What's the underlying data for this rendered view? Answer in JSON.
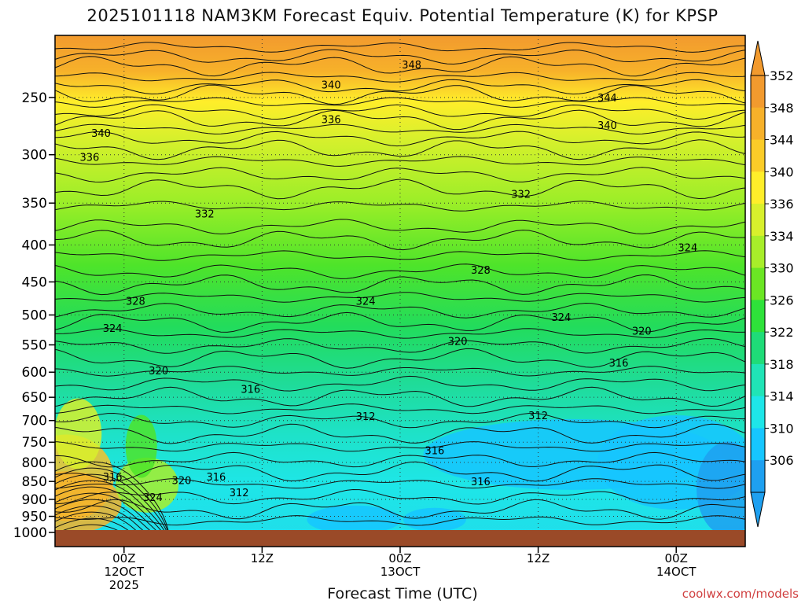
{
  "chart_data": {
    "type": "heatmap",
    "title": "2025101118 NAM3KM Forecast Equiv. Potential Temperature (K) for KPSP",
    "xlabel": "Forecast Time (UTC)",
    "ylabel": "",
    "credit": "coolwx.com/models",
    "y_pressure_levels": [
      250,
      300,
      350,
      400,
      450,
      500,
      550,
      600,
      650,
      700,
      750,
      800,
      850,
      900,
      950,
      1000
    ],
    "y_tick_labels": [
      "250",
      "300",
      "350",
      "400",
      "450",
      "500",
      "550",
      "600",
      "650",
      "700",
      "750",
      "800",
      "850",
      "900",
      "950",
      "1000"
    ],
    "x_ticks": [
      {
        "hour": 0,
        "lines": [
          "00Z",
          "12OCT",
          "2025"
        ]
      },
      {
        "hour": 12,
        "lines": [
          "12Z"
        ]
      },
      {
        "hour": 24,
        "lines": [
          "00Z",
          "13OCT"
        ]
      },
      {
        "hour": 36,
        "lines": [
          "12Z"
        ]
      },
      {
        "hour": 48,
        "lines": [
          "00Z",
          "14OCT"
        ]
      }
    ],
    "x_range_hours": [
      -6,
      54
    ],
    "colorbar_ticks": [
      352,
      348,
      344,
      340,
      336,
      334,
      330,
      326,
      322,
      318,
      314,
      310,
      306
    ],
    "colorbar_colors": [
      "#f29a2e",
      "#f7b12a",
      "#fbcc28",
      "#ffee2a",
      "#d8f02c",
      "#a8ee2a",
      "#6be624",
      "#2ee23a",
      "#1fdc78",
      "#20e4b6",
      "#1ee6e8",
      "#16c6ff",
      "#1ea0f0"
    ],
    "contour_labels": [
      {
        "value": "348",
        "hour": 25,
        "p": 225
      },
      {
        "value": "340",
        "hour": 18,
        "p": 240
      },
      {
        "value": "344",
        "hour": 42,
        "p": 250
      },
      {
        "value": "336",
        "hour": 18,
        "p": 268
      },
      {
        "value": "340",
        "hour": -2,
        "p": 280
      },
      {
        "value": "340",
        "hour": 42,
        "p": 273
      },
      {
        "value": "336",
        "hour": -3,
        "p": 302
      },
      {
        "value": "332",
        "hour": 7,
        "p": 362
      },
      {
        "value": "332",
        "hour": 34.5,
        "p": 340
      },
      {
        "value": "328",
        "hour": 31,
        "p": 433
      },
      {
        "value": "328",
        "hour": 1,
        "p": 478
      },
      {
        "value": "324",
        "hour": 21,
        "p": 478
      },
      {
        "value": "324",
        "hour": 49,
        "p": 403
      },
      {
        "value": "324",
        "hour": 38,
        "p": 503
      },
      {
        "value": "324",
        "hour": -1,
        "p": 521
      },
      {
        "value": "320",
        "hour": 29,
        "p": 543
      },
      {
        "value": "320",
        "hour": 45,
        "p": 526
      },
      {
        "value": "316",
        "hour": 43,
        "p": 582
      },
      {
        "value": "320",
        "hour": 3,
        "p": 597
      },
      {
        "value": "316",
        "hour": 11,
        "p": 633
      },
      {
        "value": "312",
        "hour": 21,
        "p": 690
      },
      {
        "value": "312",
        "hour": 36,
        "p": 688
      },
      {
        "value": "316",
        "hour": 27,
        "p": 770
      },
      {
        "value": "316",
        "hour": 31,
        "p": 850
      },
      {
        "value": "316",
        "hour": -1,
        "p": 837
      },
      {
        "value": "320",
        "hour": 5,
        "p": 846
      },
      {
        "value": "316",
        "hour": 8,
        "p": 837
      },
      {
        "value": "312",
        "hour": 10,
        "p": 880
      },
      {
        "value": "324",
        "hour": 2.5,
        "p": 893
      }
    ]
  }
}
